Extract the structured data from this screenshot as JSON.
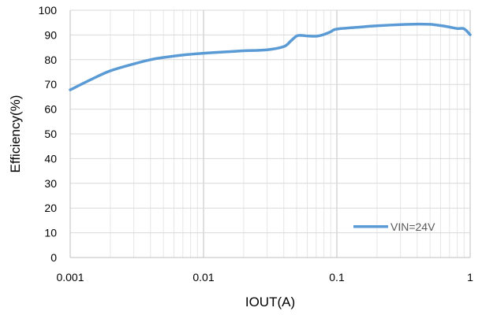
{
  "chart_data": {
    "type": "line",
    "title": "",
    "xlabel": "IOUT(A)",
    "ylabel": "Efficiency(%)",
    "x_scale": "log",
    "xlim": [
      0.001,
      1
    ],
    "ylim": [
      0,
      100
    ],
    "x_ticks": [
      "0.001",
      "0.01",
      "0.1",
      "1"
    ],
    "y_ticks": [
      "0",
      "10",
      "20",
      "30",
      "40",
      "50",
      "60",
      "70",
      "80",
      "90",
      "100"
    ],
    "grid": true,
    "legend_position": "bottom-right",
    "series": [
      {
        "name": "VIN=24V",
        "color": "#5b9bd5",
        "x": [
          0.001,
          0.0015,
          0.002,
          0.003,
          0.004,
          0.005,
          0.007,
          0.01,
          0.015,
          0.02,
          0.03,
          0.04,
          0.045,
          0.05,
          0.055,
          0.06,
          0.07,
          0.08,
          0.09,
          0.1,
          0.15,
          0.2,
          0.3,
          0.4,
          0.5,
          0.6,
          0.7,
          0.8,
          0.9,
          1.0
        ],
        "y": [
          67.8,
          72.5,
          75.5,
          78.3,
          80.0,
          80.9,
          81.9,
          82.6,
          83.2,
          83.6,
          84.0,
          85.3,
          87.5,
          89.6,
          89.8,
          89.6,
          89.5,
          90.2,
          91.3,
          92.4,
          93.2,
          93.7,
          94.2,
          94.4,
          94.3,
          93.8,
          93.2,
          92.6,
          92.5,
          90.1
        ]
      }
    ]
  }
}
